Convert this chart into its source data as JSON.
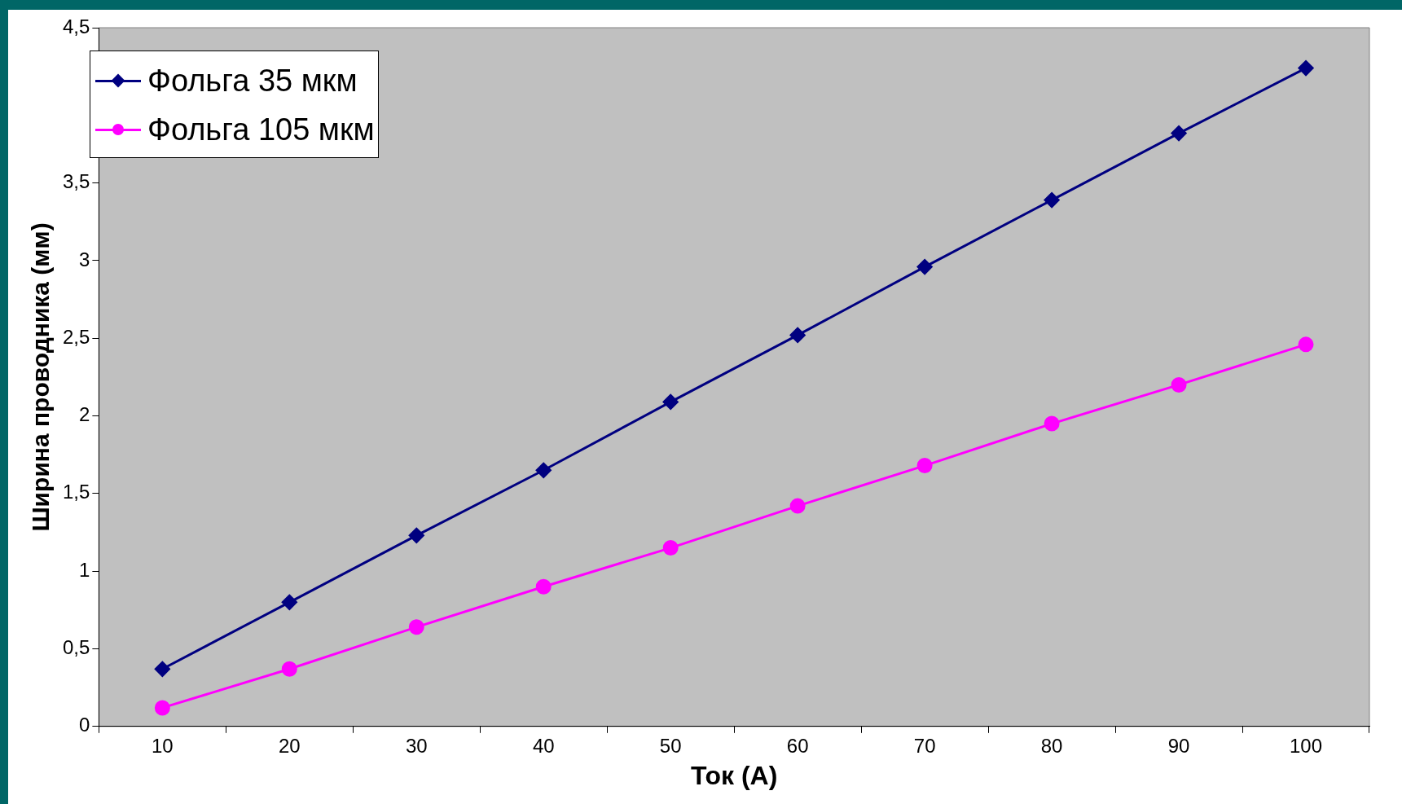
{
  "chart_data": {
    "type": "line",
    "xlabel": "Ток (А)",
    "ylabel": "Ширина проводника (мм)",
    "categories": [
      "10",
      "20",
      "30",
      "40",
      "50",
      "60",
      "70",
      "80",
      "90",
      "100"
    ],
    "series": [
      {
        "name": "Фольга 35 мкм",
        "color": "#000080",
        "marker": "diamond",
        "values": [
          0.37,
          0.8,
          1.23,
          1.65,
          2.09,
          2.52,
          2.96,
          3.39,
          3.82,
          4.24
        ]
      },
      {
        "name": "Фольга 105 мкм",
        "color": "#ff00ff",
        "marker": "circle",
        "values": [
          0.12,
          0.37,
          0.64,
          0.9,
          1.15,
          1.42,
          1.68,
          1.95,
          2.2,
          2.46
        ]
      }
    ],
    "ylim": [
      0,
      4.5
    ],
    "yticks": [
      0,
      {
        "value": 0.5,
        "label": "0,5"
      },
      1,
      {
        "value": 1.5,
        "label": "1,5"
      },
      2,
      {
        "value": 2.5,
        "label": "2,5"
      },
      3,
      {
        "value": 3.5,
        "label": "3,5"
      },
      {
        "value": 4,
        "label": null
      },
      {
        "value": 4.5,
        "label": "4,5"
      }
    ],
    "grid": false,
    "legend": "top left",
    "line_style": "solid"
  }
}
